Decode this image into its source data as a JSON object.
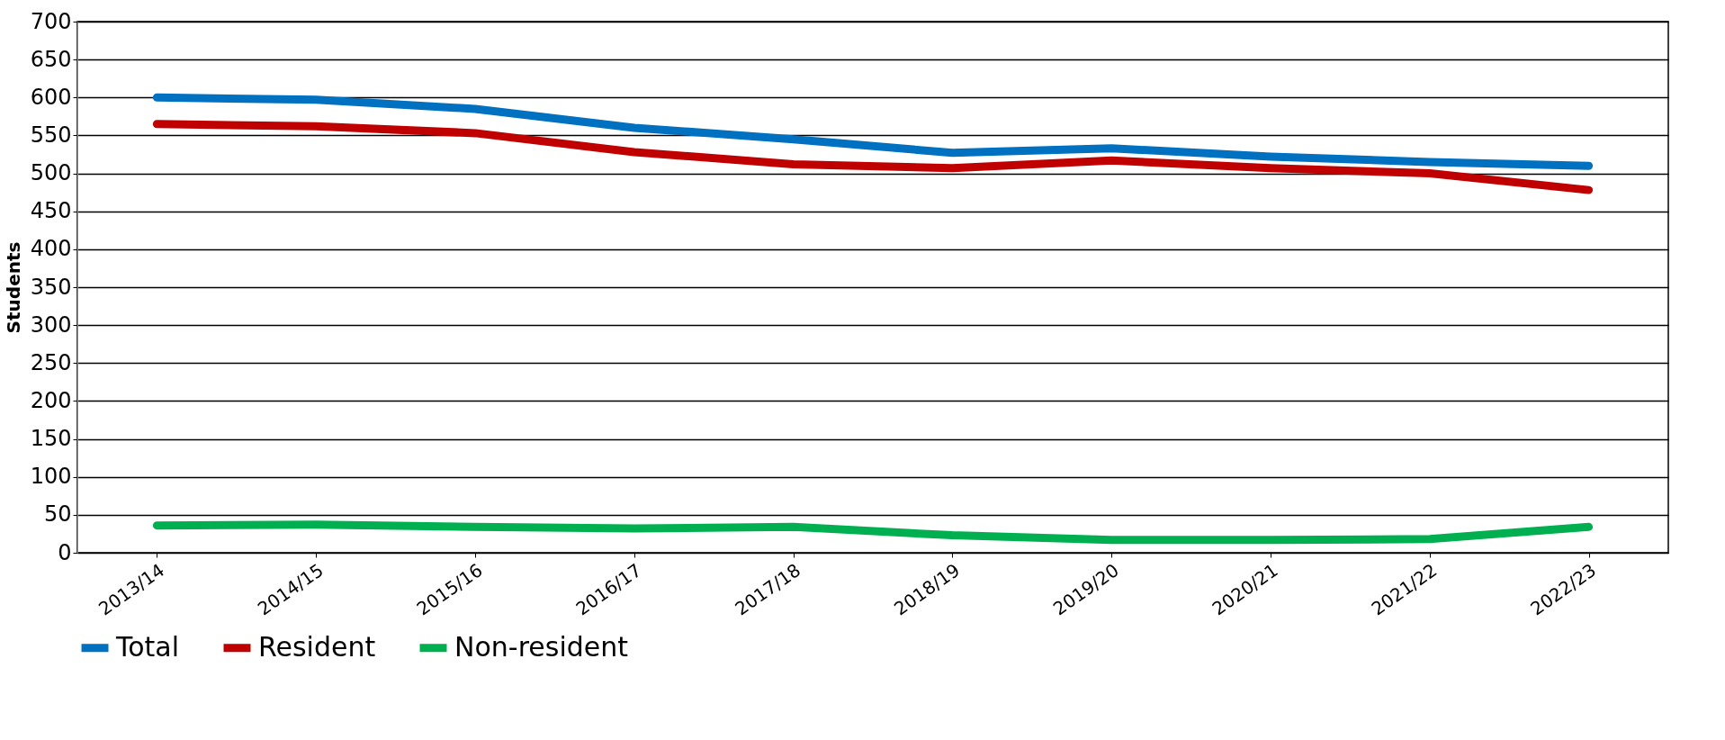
{
  "chart_data": {
    "type": "line",
    "ylabel": "Students",
    "categories": [
      "2013/14",
      "2014/15",
      "2015/16",
      "2016/17",
      "2017/18",
      "2018/19",
      "2019/20",
      "2020/21",
      "2021/22",
      "2022/23"
    ],
    "series": [
      {
        "name": "Total",
        "color": "#0070c0",
        "values": [
          600,
          597,
          585,
          560,
          545,
          527,
          533,
          522,
          515,
          510
        ]
      },
      {
        "name": "Resident",
        "color": "#c00000",
        "values": [
          565,
          562,
          553,
          528,
          512,
          507,
          517,
          507,
          500,
          478
        ]
      },
      {
        "name": "Non-resident",
        "color": "#00b050",
        "values": [
          36,
          37,
          34,
          32,
          34,
          23,
          17,
          17,
          18,
          34
        ]
      }
    ],
    "ylim": [
      0,
      700
    ],
    "yticks": [
      0,
      50,
      100,
      150,
      200,
      250,
      300,
      350,
      400,
      450,
      500,
      550,
      600,
      650,
      700
    ],
    "grid": "y",
    "legend": "bottom",
    "marker": "none",
    "line_style": "solid"
  }
}
